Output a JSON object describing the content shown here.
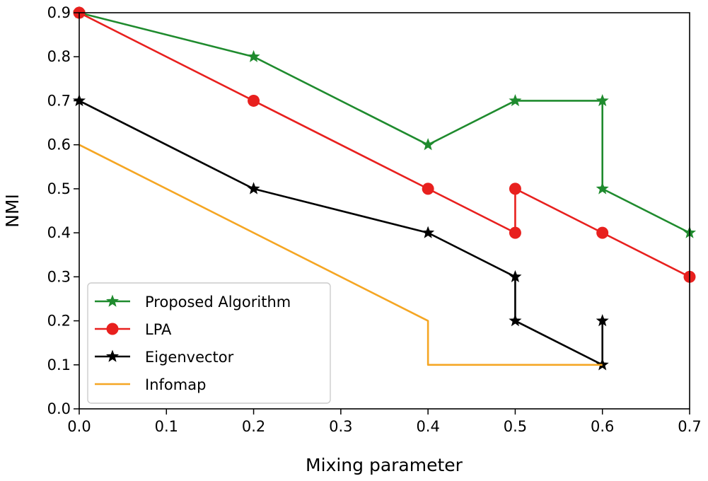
{
  "chart_data": {
    "type": "line",
    "title": "",
    "xlabel": "Mixing parameter",
    "ylabel": "NMI",
    "xlim": [
      0.0,
      0.7
    ],
    "ylim": [
      0.0,
      0.9
    ],
    "xticks": [
      "0.0",
      "0.1",
      "0.2",
      "0.3",
      "0.4",
      "0.5",
      "0.6",
      "0.7"
    ],
    "yticks": [
      "0.0",
      "0.1",
      "0.2",
      "0.3",
      "0.4",
      "0.5",
      "0.6",
      "0.7",
      "0.8",
      "0.9"
    ],
    "grid": false,
    "legend_position": "lower-left",
    "series": [
      {
        "name": "Proposed Algorithm",
        "color": "#1f8b2e",
        "marker": "star",
        "x": [
          0.0,
          0.2,
          0.4,
          0.5,
          0.6,
          0.6,
          0.7
        ],
        "y": [
          0.9,
          0.8,
          0.6,
          0.7,
          0.7,
          0.5,
          0.4
        ]
      },
      {
        "name": "LPA",
        "color": "#e8201e",
        "marker": "circle",
        "x": [
          0.0,
          0.2,
          0.4,
          0.5,
          0.5,
          0.6,
          0.7
        ],
        "y": [
          0.9,
          0.7,
          0.5,
          0.4,
          0.5,
          0.4,
          0.3
        ]
      },
      {
        "name": "Eigenvector",
        "color": "#000000",
        "marker": "star",
        "x": [
          0.0,
          0.2,
          0.4,
          0.5,
          0.5,
          0.6,
          0.6
        ],
        "y": [
          0.7,
          0.5,
          0.4,
          0.3,
          0.2,
          0.1,
          0.2
        ]
      },
      {
        "name": "Infomap",
        "color": "#f5a623",
        "marker": "none",
        "x": [
          0.0,
          0.4,
          0.4,
          0.6
        ],
        "y": [
          0.6,
          0.2,
          0.1,
          0.1
        ]
      }
    ]
  }
}
